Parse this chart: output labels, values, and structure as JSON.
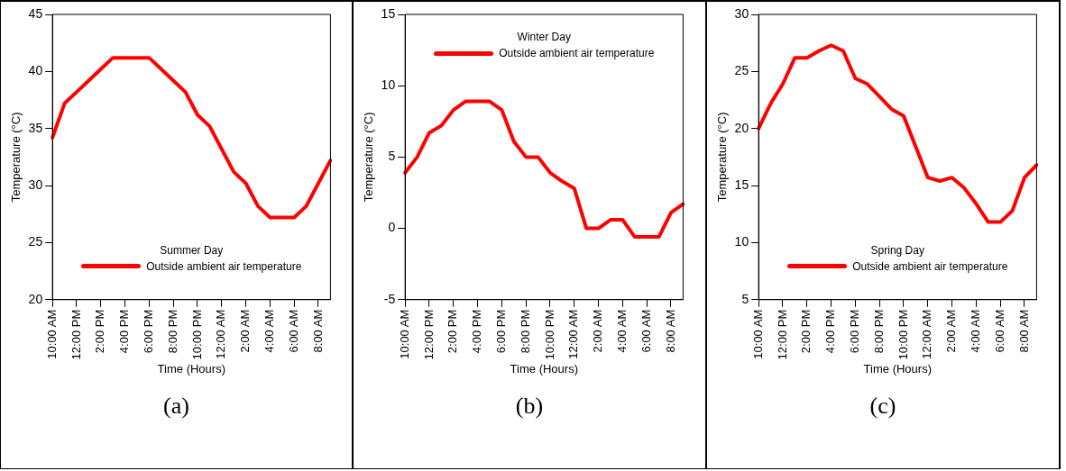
{
  "chart_data": [
    {
      "type": "line",
      "legend_title": "Summer Day",
      "xlabel": "Time (Hours)",
      "ylabel": "Temperature (°C)",
      "categories": [
        "10:00 AM",
        null,
        "12:00 PM",
        null,
        "2:00 PM",
        null,
        "4:00 PM",
        null,
        "6:00 PM",
        null,
        "8:00 PM",
        null,
        "10:00 PM",
        null,
        "12:00 AM",
        null,
        "2:00 AM",
        null,
        "4:00 AM",
        null,
        "6:00 AM",
        null,
        "8:00 AM",
        null
      ],
      "series": [
        {
          "name": "Outside ambient air temperature",
          "color": "#ff0000",
          "values": [
            34.2,
            37.2,
            38.2,
            39.2,
            40.2,
            41.2,
            41.2,
            41.2,
            41.2,
            40.2,
            39.2,
            38.2,
            36.2,
            35.2,
            33.2,
            31.2,
            30.2,
            28.2,
            27.2,
            27.2,
            27.2,
            28.2,
            30.2,
            32.2
          ]
        }
      ],
      "ylim": [
        20,
        45
      ],
      "yticks": [
        20,
        25,
        30,
        35,
        40,
        45
      ],
      "grid": false,
      "legend": "bottom",
      "annotations": [
        "(a)"
      ]
    },
    {
      "type": "line",
      "legend_title": "Winter Day",
      "xlabel": "Time (Hours)",
      "ylabel": "Temperature (°C)",
      "categories": [
        "10:00 AM",
        null,
        "12:00 PM",
        null,
        "2:00 PM",
        null,
        "4:00 PM",
        null,
        "6:00 PM",
        null,
        "8:00 PM",
        null,
        "10:00 PM",
        null,
        "12:00 AM",
        null,
        "2:00 AM",
        null,
        "4:00 AM",
        null,
        "6:00 AM",
        null,
        "8:00 AM",
        null
      ],
      "series": [
        {
          "name": "Outside ambient air temperature",
          "color": "#ff0000",
          "values": [
            3.9,
            5,
            6.7,
            7.2,
            8.3,
            8.9,
            8.9,
            8.9,
            8.3,
            6.1,
            5,
            5,
            3.9,
            3.3,
            2.8,
            0,
            0,
            0.6,
            0.6,
            -0.6,
            -0.6,
            -0.6,
            1.1,
            1.7
          ]
        }
      ],
      "ylim": [
        -5,
        15
      ],
      "yticks": [
        -5,
        0,
        5,
        10,
        15
      ],
      "grid": false,
      "legend": "top",
      "annotations": [
        "(b)"
      ]
    },
    {
      "type": "line",
      "legend_title": "Spring Day",
      "xlabel": "Time (Hours)",
      "ylabel": "Temperature (°C)",
      "categories": [
        "10:00 AM",
        null,
        "12:00 PM",
        null,
        "2:00 PM",
        null,
        "4:00 PM",
        null,
        "6:00 PM",
        null,
        "8:00 PM",
        null,
        "10:00 PM",
        null,
        "12:00 AM",
        null,
        "2:00 AM",
        null,
        "4:00 AM",
        null,
        "6:00 AM",
        null,
        "8:00 AM",
        null
      ],
      "series": [
        {
          "name": "Outside ambient air temperature",
          "color": "#ff0000",
          "values": [
            20,
            22.2,
            23.9,
            26.2,
            26.2,
            26.8,
            27.3,
            26.8,
            24.4,
            23.9,
            22.8,
            21.7,
            21.1,
            18.4,
            15.7,
            15.4,
            15.7,
            14.8,
            13.4,
            11.8,
            11.8,
            12.8,
            15.7,
            16.8
          ]
        }
      ],
      "ylim": [
        5,
        30
      ],
      "yticks": [
        5,
        10,
        15,
        20,
        25,
        30
      ],
      "grid": false,
      "legend": "bottom",
      "annotations": [
        "(c)"
      ]
    }
  ]
}
